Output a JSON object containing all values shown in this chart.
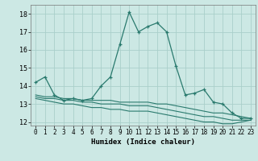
{
  "xlabel": "Humidex (Indice chaleur)",
  "bg_color": "#cce8e4",
  "grid_color": "#aacfca",
  "line_color": "#2a7a6e",
  "xlim": [
    -0.5,
    23.5
  ],
  "ylim": [
    11.8,
    18.5
  ],
  "yticks": [
    12,
    13,
    14,
    15,
    16,
    17,
    18
  ],
  "xticks": [
    0,
    1,
    2,
    3,
    4,
    5,
    6,
    7,
    8,
    9,
    10,
    11,
    12,
    13,
    14,
    15,
    16,
    17,
    18,
    19,
    20,
    21,
    22,
    23
  ],
  "series1_x": [
    0,
    1,
    2,
    3,
    4,
    5,
    6,
    7,
    8,
    9,
    10,
    11,
    12,
    13,
    14,
    15,
    16,
    17,
    18,
    19,
    20,
    21,
    22,
    23
  ],
  "series1_y": [
    14.2,
    14.5,
    13.5,
    13.2,
    13.3,
    13.2,
    13.3,
    14.0,
    14.5,
    16.3,
    18.1,
    17.0,
    17.3,
    17.5,
    17.0,
    15.1,
    13.5,
    13.6,
    13.8,
    13.1,
    13.0,
    12.5,
    12.2,
    12.2
  ],
  "series2_x": [
    0,
    1,
    2,
    3,
    4,
    5,
    6,
    7,
    8,
    9,
    10,
    11,
    12,
    13,
    14,
    15,
    16,
    17,
    18,
    19,
    20,
    21,
    22,
    23
  ],
  "series2_y": [
    13.5,
    13.4,
    13.4,
    13.3,
    13.3,
    13.2,
    13.2,
    13.2,
    13.2,
    13.1,
    13.1,
    13.1,
    13.1,
    13.0,
    13.0,
    12.9,
    12.8,
    12.7,
    12.6,
    12.5,
    12.5,
    12.4,
    12.3,
    12.2
  ],
  "series3_x": [
    0,
    1,
    2,
    3,
    4,
    5,
    6,
    7,
    8,
    9,
    10,
    11,
    12,
    13,
    14,
    15,
    16,
    17,
    18,
    19,
    20,
    21,
    22,
    23
  ],
  "series3_y": [
    13.4,
    13.3,
    13.3,
    13.2,
    13.2,
    13.1,
    13.1,
    13.0,
    13.0,
    13.0,
    12.9,
    12.9,
    12.9,
    12.8,
    12.7,
    12.6,
    12.5,
    12.4,
    12.3,
    12.3,
    12.2,
    12.1,
    12.1,
    12.1
  ],
  "series4_x": [
    0,
    1,
    2,
    3,
    4,
    5,
    6,
    7,
    8,
    9,
    10,
    11,
    12,
    13,
    14,
    15,
    16,
    17,
    18,
    19,
    20,
    21,
    22,
    23
  ],
  "series4_y": [
    13.3,
    13.2,
    13.1,
    13.0,
    13.0,
    12.9,
    12.8,
    12.8,
    12.7,
    12.7,
    12.6,
    12.6,
    12.6,
    12.5,
    12.4,
    12.3,
    12.2,
    12.1,
    12.0,
    12.0,
    11.9,
    11.9,
    12.0,
    12.1
  ]
}
